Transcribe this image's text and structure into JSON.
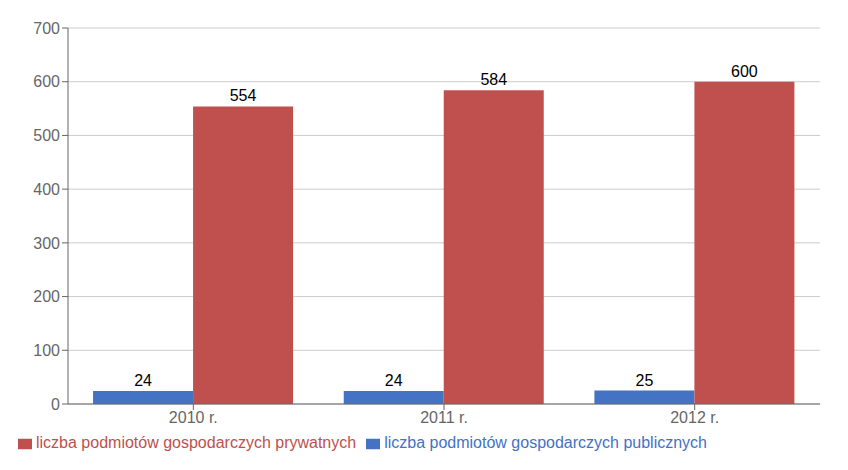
{
  "chart_data": {
    "type": "bar",
    "categories": [
      "2010 r.",
      "2011 r.",
      "2012 r."
    ],
    "series": [
      {
        "name": "liczba podmiotów gospodarczych publicznych",
        "color": "#4472C4",
        "values": [
          24,
          24,
          25
        ]
      },
      {
        "name": "liczba podmiotów gospodarczych prywatnych",
        "color": "#C0504D",
        "values": [
          554,
          584,
          600
        ]
      }
    ],
    "ylim": [
      0,
      700
    ],
    "yticks": [
      0,
      100,
      200,
      300,
      400,
      500,
      600,
      700
    ],
    "grid": true,
    "legend": "bottom left",
    "data_labels": true
  }
}
